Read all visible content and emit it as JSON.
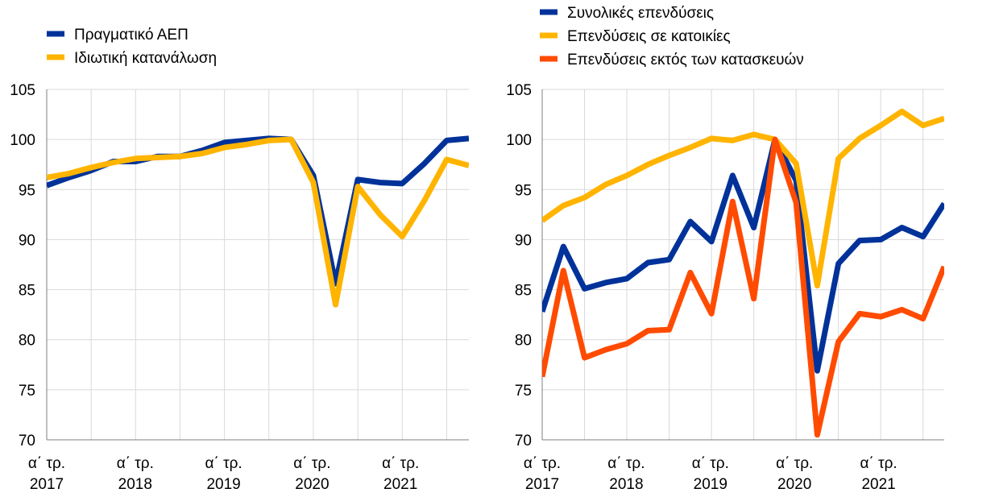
{
  "colors": {
    "blue": "#003299",
    "yellow": "#FFB400",
    "orange": "#FF4B00"
  },
  "chart_data": [
    {
      "type": "line",
      "x": [
        "2017Q1",
        "2017Q2",
        "2017Q3",
        "2017Q4",
        "2018Q1",
        "2018Q2",
        "2018Q3",
        "2018Q4",
        "2019Q1",
        "2019Q2",
        "2019Q3",
        "2019Q4",
        "2020Q1",
        "2020Q2",
        "2020Q3",
        "2020Q4",
        "2021Q1",
        "2021Q2",
        "2021Q3",
        "2021Q4"
      ],
      "x_tick_labels": [
        {
          "line1": "α΄ τρ.",
          "line2": "2017"
        },
        {
          "line1": "α΄ τρ.",
          "line2": "2018"
        },
        {
          "line1": "α΄ τρ.",
          "line2": "2019"
        },
        {
          "line1": "α΄ τρ.",
          "line2": "2020"
        },
        {
          "line1": "α΄ τρ.",
          "line2": "2021"
        }
      ],
      "y_ticks": [
        "70",
        "75",
        "80",
        "85",
        "90",
        "95",
        "100",
        "105"
      ],
      "ylim": [
        70,
        105
      ],
      "grid": true,
      "legend_position": "top-left",
      "series": [
        {
          "name": "Πραγματικό ΑΕΠ",
          "color": "#003299",
          "values": [
            95.4,
            96.2,
            96.9,
            97.8,
            97.8,
            98.3,
            98.3,
            98.9,
            99.7,
            99.9,
            100.1,
            100.0,
            96.4,
            85.6,
            96.0,
            95.7,
            95.6,
            97.6,
            99.9,
            100.1
          ]
        },
        {
          "name": "Ιδιωτική κατανάλωση",
          "color": "#FFB400",
          "values": [
            96.2,
            96.6,
            97.2,
            97.7,
            98.1,
            98.2,
            98.3,
            98.6,
            99.2,
            99.5,
            99.9,
            100.0,
            95.7,
            83.5,
            95.3,
            92.5,
            90.3,
            93.9,
            98.0,
            97.4
          ]
        }
      ]
    },
    {
      "type": "line",
      "x": [
        "2017Q1",
        "2017Q2",
        "2017Q3",
        "2017Q4",
        "2018Q1",
        "2018Q2",
        "2018Q3",
        "2018Q4",
        "2019Q1",
        "2019Q2",
        "2019Q3",
        "2019Q4",
        "2020Q1",
        "2020Q2",
        "2020Q3",
        "2020Q4",
        "2021Q1",
        "2021Q2",
        "2021Q3",
        "2021Q4"
      ],
      "x_tick_labels": [
        {
          "line1": "α΄ τρ.",
          "line2": "2017"
        },
        {
          "line1": "α΄ τρ.",
          "line2": "2018"
        },
        {
          "line1": "α΄ τρ.",
          "line2": "2019"
        },
        {
          "line1": "α΄ τρ.",
          "line2": "2020"
        },
        {
          "line1": "α΄ τρ.",
          "line2": "2021"
        }
      ],
      "y_ticks": [
        "70",
        "75",
        "80",
        "85",
        "90",
        "95",
        "100",
        "105"
      ],
      "ylim": [
        70,
        105
      ],
      "grid": true,
      "legend_position": "top-left",
      "series": [
        {
          "name": "Συνολικές επενδύσεις",
          "color": "#003299",
          "values": [
            82.8,
            89.3,
            85.1,
            85.7,
            86.1,
            87.7,
            88.0,
            91.8,
            89.8,
            96.4,
            91.2,
            100.0,
            95.9,
            76.9,
            87.6,
            89.9,
            90.0,
            91.2,
            90.3,
            93.6
          ]
        },
        {
          "name": "Επενδύσεις σε κατοικίες",
          "color": "#FFB400",
          "values": [
            91.9,
            93.4,
            94.2,
            95.5,
            96.4,
            97.5,
            98.4,
            99.2,
            100.1,
            99.9,
            100.5,
            100.0,
            97.6,
            85.4,
            98.1,
            100.1,
            101.4,
            102.8,
            101.4,
            102.1
          ]
        },
        {
          "name": "Επενδύσεις εκτός των κατασκευών",
          "color": "#FF4B00",
          "values": [
            76.3,
            86.9,
            78.2,
            79.0,
            79.6,
            80.9,
            81.0,
            86.7,
            82.6,
            93.8,
            84.1,
            100.0,
            93.7,
            70.5,
            79.8,
            82.6,
            82.3,
            83.0,
            82.1,
            87.3
          ]
        }
      ]
    }
  ]
}
